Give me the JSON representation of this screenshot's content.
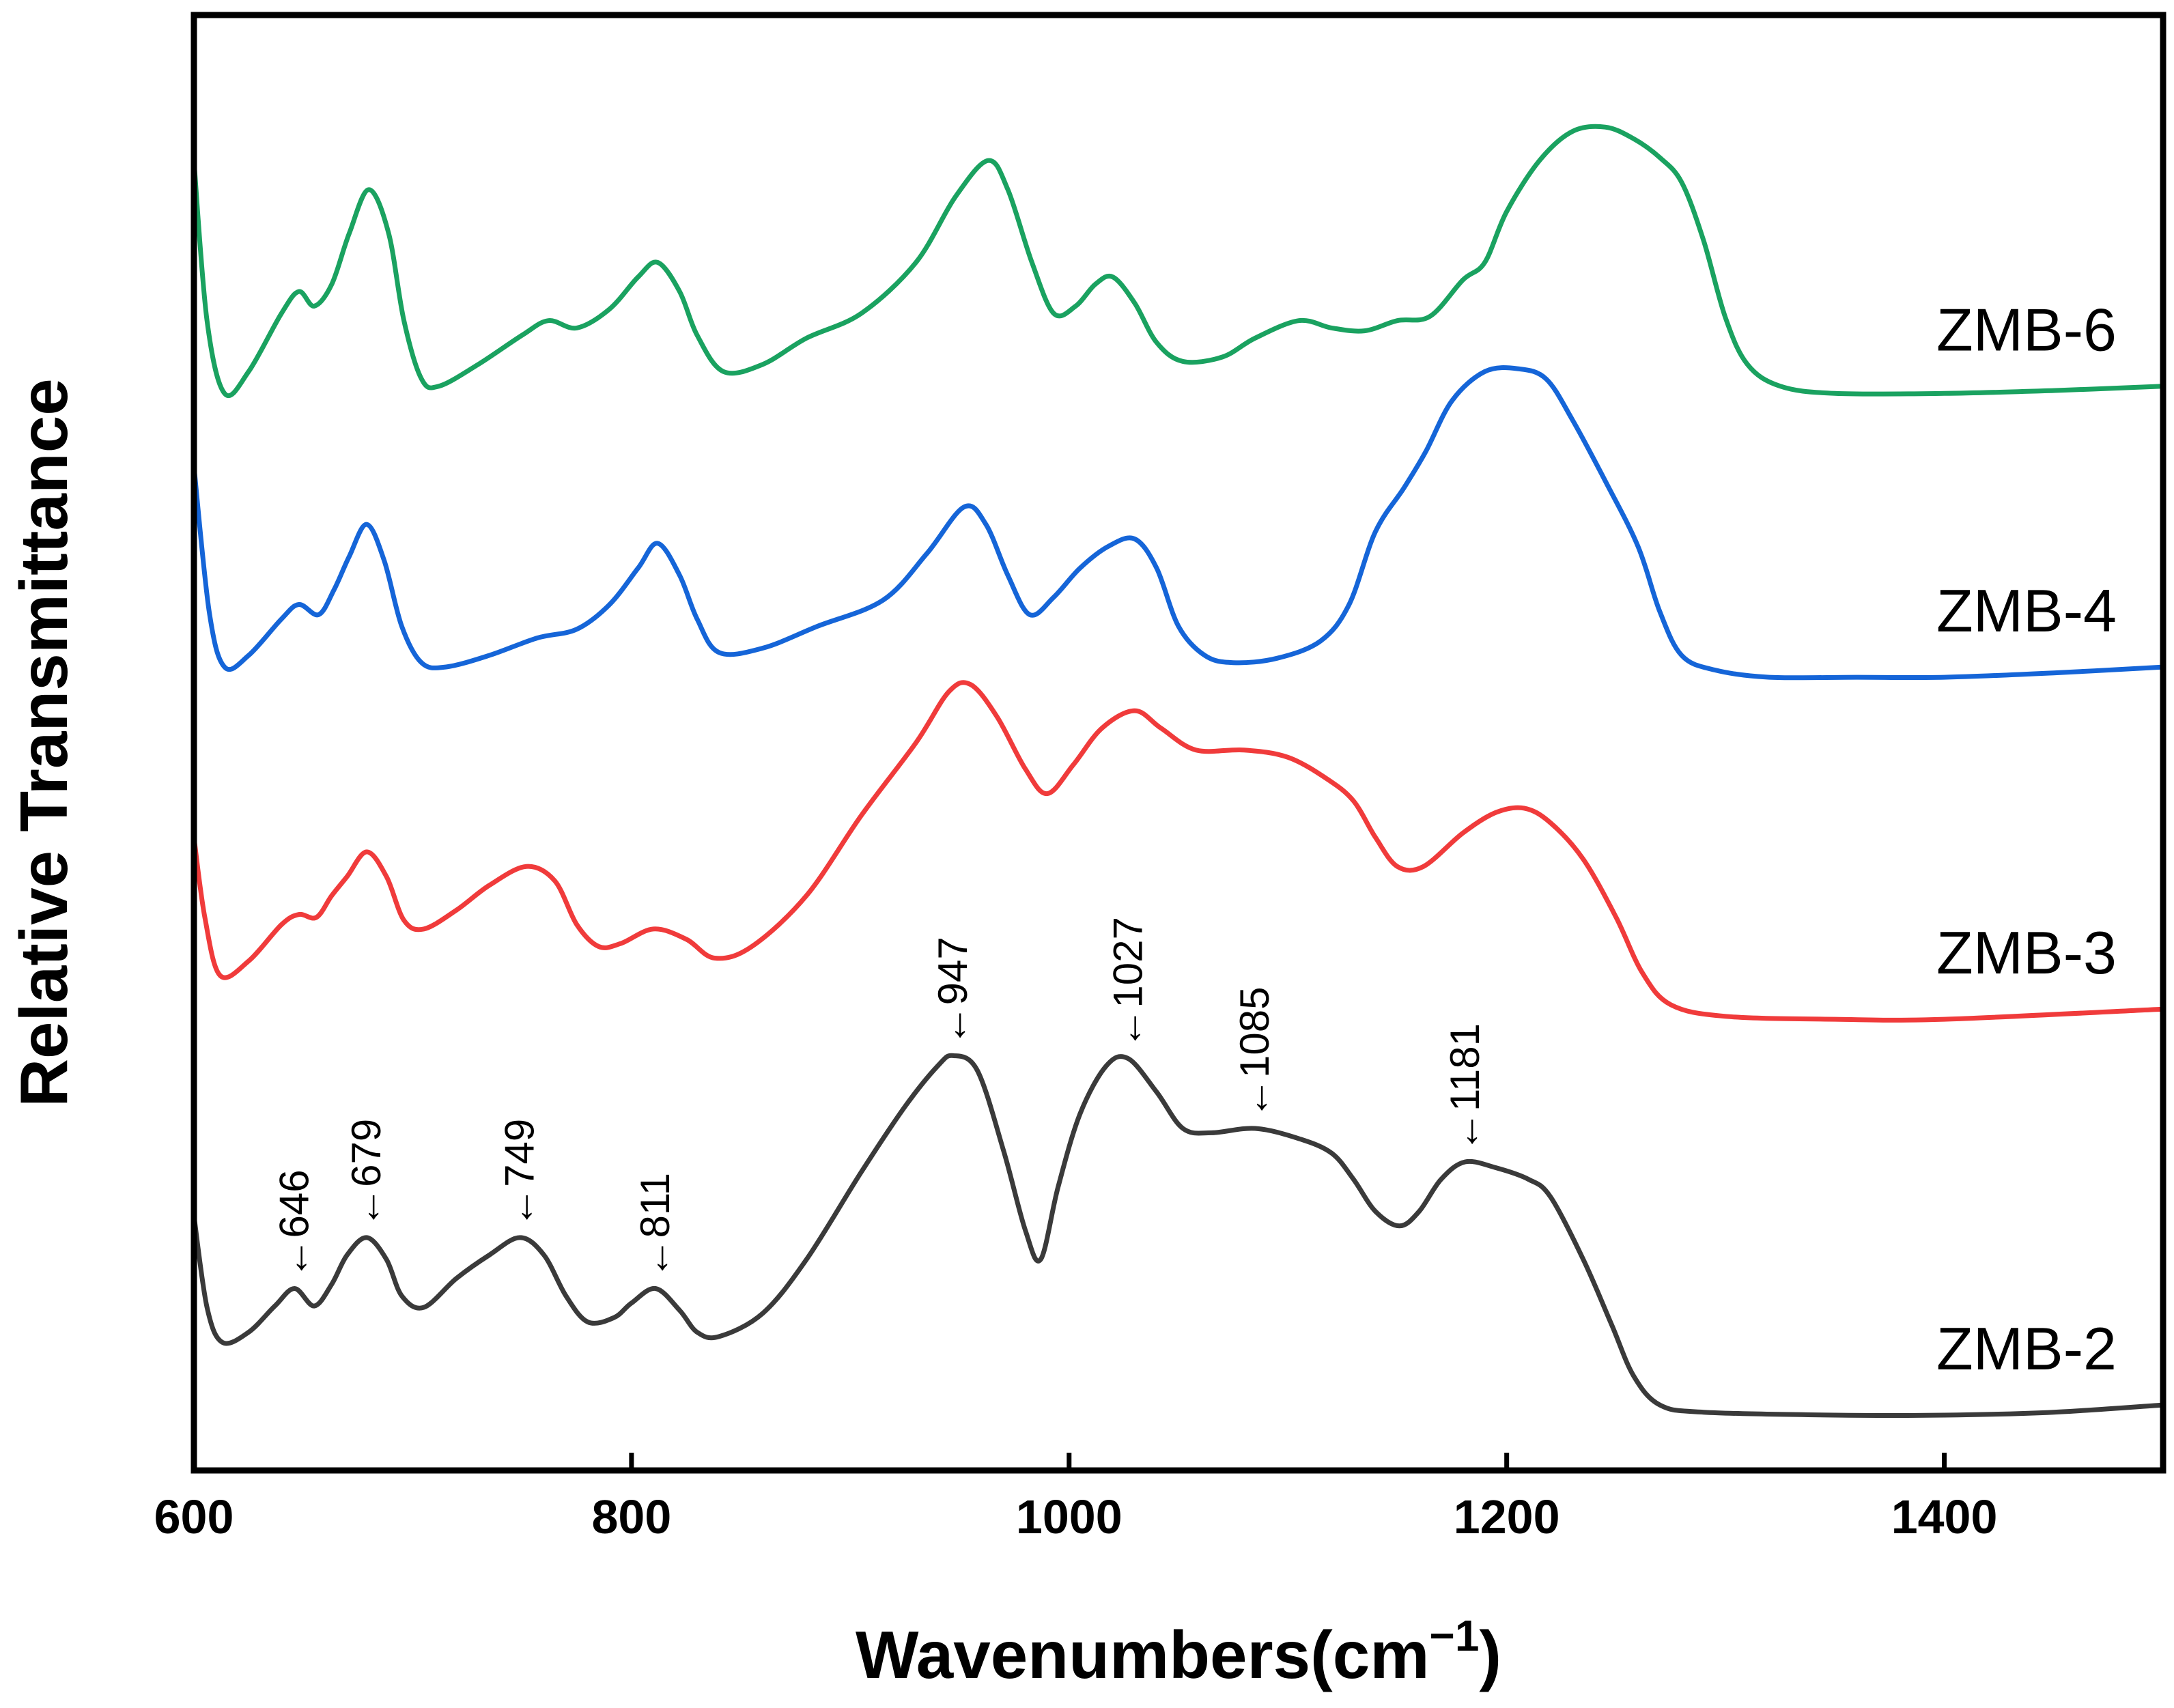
{
  "chart_data": {
    "type": "line",
    "title": "",
    "xlabel": "Wavenumbers(cm",
    "xlabel_sup": "−1",
    "xlabel_close": ")",
    "ylabel": "Relative Transmittance",
    "xlim": [
      600,
      1500
    ],
    "ylim": [
      0,
      10
    ],
    "xticks": [
      600,
      800,
      1000,
      1200,
      1400
    ],
    "yticks": [],
    "grid": false,
    "legend": "inline labels at right",
    "series": [
      {
        "name": "ZMB-6",
        "color": "#1aa260",
        "points": [
          [
            600,
            9.0
          ],
          [
            606,
            7.9
          ],
          [
            614,
            7.4
          ],
          [
            625,
            7.55
          ],
          [
            640,
            7.95
          ],
          [
            648,
            8.1
          ],
          [
            655,
            8.0
          ],
          [
            663,
            8.15
          ],
          [
            671,
            8.5
          ],
          [
            680,
            8.8
          ],
          [
            689,
            8.5
          ],
          [
            696,
            7.9
          ],
          [
            704,
            7.5
          ],
          [
            712,
            7.45
          ],
          [
            730,
            7.6
          ],
          [
            750,
            7.8
          ],
          [
            762,
            7.9
          ],
          [
            775,
            7.85
          ],
          [
            790,
            7.98
          ],
          [
            803,
            8.2
          ],
          [
            812,
            8.3
          ],
          [
            822,
            8.1
          ],
          [
            830,
            7.8
          ],
          [
            842,
            7.55
          ],
          [
            860,
            7.6
          ],
          [
            880,
            7.78
          ],
          [
            905,
            7.95
          ],
          [
            930,
            8.3
          ],
          [
            948,
            8.75
          ],
          [
            963,
            9.0
          ],
          [
            972,
            8.8
          ],
          [
            983,
            8.3
          ],
          [
            993,
            7.95
          ],
          [
            1003,
            8.0
          ],
          [
            1012,
            8.15
          ],
          [
            1020,
            8.2
          ],
          [
            1030,
            8.02
          ],
          [
            1040,
            7.75
          ],
          [
            1052,
            7.62
          ],
          [
            1070,
            7.65
          ],
          [
            1085,
            7.78
          ],
          [
            1105,
            7.9
          ],
          [
            1120,
            7.85
          ],
          [
            1135,
            7.83
          ],
          [
            1150,
            7.9
          ],
          [
            1165,
            7.93
          ],
          [
            1180,
            8.18
          ],
          [
            1190,
            8.3
          ],
          [
            1200,
            8.65
          ],
          [
            1215,
            9.0
          ],
          [
            1230,
            9.2
          ],
          [
            1245,
            9.23
          ],
          [
            1258,
            9.15
          ],
          [
            1270,
            9.02
          ],
          [
            1280,
            8.85
          ],
          [
            1290,
            8.45
          ],
          [
            1300,
            7.92
          ],
          [
            1310,
            7.6
          ],
          [
            1325,
            7.45
          ],
          [
            1350,
            7.4
          ],
          [
            1400,
            7.4
          ],
          [
            1450,
            7.42
          ],
          [
            1500,
            7.45
          ]
        ]
      },
      {
        "name": "ZMB-4",
        "color": "#1565d8",
        "points": [
          [
            600,
            6.9
          ],
          [
            607,
            5.9
          ],
          [
            614,
            5.52
          ],
          [
            625,
            5.6
          ],
          [
            640,
            5.85
          ],
          [
            648,
            5.95
          ],
          [
            657,
            5.88
          ],
          [
            664,
            6.05
          ],
          [
            671,
            6.28
          ],
          [
            679,
            6.5
          ],
          [
            687,
            6.25
          ],
          [
            695,
            5.8
          ],
          [
            704,
            5.55
          ],
          [
            715,
            5.52
          ],
          [
            735,
            5.6
          ],
          [
            757,
            5.72
          ],
          [
            775,
            5.78
          ],
          [
            790,
            5.95
          ],
          [
            803,
            6.2
          ],
          [
            812,
            6.37
          ],
          [
            822,
            6.15
          ],
          [
            830,
            5.85
          ],
          [
            840,
            5.62
          ],
          [
            860,
            5.65
          ],
          [
            885,
            5.8
          ],
          [
            915,
            5.98
          ],
          [
            935,
            6.3
          ],
          [
            952,
            6.62
          ],
          [
            962,
            6.5
          ],
          [
            972,
            6.15
          ],
          [
            982,
            5.88
          ],
          [
            993,
            6.0
          ],
          [
            1005,
            6.2
          ],
          [
            1018,
            6.35
          ],
          [
            1030,
            6.4
          ],
          [
            1040,
            6.2
          ],
          [
            1050,
            5.8
          ],
          [
            1062,
            5.6
          ],
          [
            1075,
            5.55
          ],
          [
            1095,
            5.58
          ],
          [
            1115,
            5.7
          ],
          [
            1128,
            5.95
          ],
          [
            1140,
            6.45
          ],
          [
            1153,
            6.75
          ],
          [
            1163,
            7.0
          ],
          [
            1175,
            7.35
          ],
          [
            1190,
            7.55
          ],
          [
            1205,
            7.57
          ],
          [
            1218,
            7.5
          ],
          [
            1230,
            7.22
          ],
          [
            1245,
            6.8
          ],
          [
            1260,
            6.35
          ],
          [
            1270,
            5.9
          ],
          [
            1280,
            5.6
          ],
          [
            1295,
            5.5
          ],
          [
            1320,
            5.45
          ],
          [
            1360,
            5.45
          ],
          [
            1400,
            5.45
          ],
          [
            1450,
            5.48
          ],
          [
            1500,
            5.52
          ]
        ]
      },
      {
        "name": "ZMB-3",
        "color": "#f03b3b",
        "points": [
          [
            600,
            4.35
          ],
          [
            605,
            3.8
          ],
          [
            612,
            3.4
          ],
          [
            625,
            3.5
          ],
          [
            640,
            3.75
          ],
          [
            648,
            3.82
          ],
          [
            656,
            3.8
          ],
          [
            663,
            3.95
          ],
          [
            670,
            4.08
          ],
          [
            679,
            4.25
          ],
          [
            688,
            4.08
          ],
          [
            696,
            3.78
          ],
          [
            705,
            3.72
          ],
          [
            720,
            3.85
          ],
          [
            735,
            4.02
          ],
          [
            752,
            4.15
          ],
          [
            765,
            4.05
          ],
          [
            775,
            3.75
          ],
          [
            785,
            3.6
          ],
          [
            795,
            3.62
          ],
          [
            810,
            3.72
          ],
          [
            825,
            3.65
          ],
          [
            838,
            3.52
          ],
          [
            855,
            3.6
          ],
          [
            880,
            3.95
          ],
          [
            905,
            4.5
          ],
          [
            930,
            5.0
          ],
          [
            945,
            5.35
          ],
          [
            955,
            5.4
          ],
          [
            967,
            5.18
          ],
          [
            980,
            4.82
          ],
          [
            990,
            4.65
          ],
          [
            1002,
            4.85
          ],
          [
            1015,
            5.1
          ],
          [
            1030,
            5.22
          ],
          [
            1042,
            5.1
          ],
          [
            1058,
            4.95
          ],
          [
            1080,
            4.95
          ],
          [
            1100,
            4.9
          ],
          [
            1118,
            4.75
          ],
          [
            1130,
            4.6
          ],
          [
            1140,
            4.35
          ],
          [
            1150,
            4.15
          ],
          [
            1162,
            4.15
          ],
          [
            1180,
            4.38
          ],
          [
            1195,
            4.52
          ],
          [
            1208,
            4.55
          ],
          [
            1220,
            4.45
          ],
          [
            1235,
            4.2
          ],
          [
            1250,
            3.8
          ],
          [
            1262,
            3.42
          ],
          [
            1275,
            3.2
          ],
          [
            1300,
            3.12
          ],
          [
            1350,
            3.1
          ],
          [
            1400,
            3.1
          ],
          [
            1500,
            3.17
          ]
        ]
      },
      {
        "name": "ZMB-2",
        "color": "#3a3a3a",
        "points": [
          [
            600,
            1.75
          ],
          [
            606,
            1.12
          ],
          [
            613,
            0.88
          ],
          [
            625,
            0.95
          ],
          [
            637,
            1.13
          ],
          [
            646,
            1.25
          ],
          [
            655,
            1.13
          ],
          [
            663,
            1.28
          ],
          [
            670,
            1.48
          ],
          [
            679,
            1.6
          ],
          [
            688,
            1.45
          ],
          [
            695,
            1.2
          ],
          [
            705,
            1.12
          ],
          [
            720,
            1.32
          ],
          [
            735,
            1.48
          ],
          [
            749,
            1.6
          ],
          [
            760,
            1.48
          ],
          [
            770,
            1.2
          ],
          [
            780,
            1.02
          ],
          [
            792,
            1.05
          ],
          [
            800,
            1.15
          ],
          [
            811,
            1.25
          ],
          [
            822,
            1.1
          ],
          [
            830,
            0.95
          ],
          [
            840,
            0.92
          ],
          [
            860,
            1.08
          ],
          [
            880,
            1.45
          ],
          [
            905,
            2.05
          ],
          [
            925,
            2.5
          ],
          [
            940,
            2.78
          ],
          [
            947,
            2.85
          ],
          [
            958,
            2.75
          ],
          [
            970,
            2.2
          ],
          [
            980,
            1.65
          ],
          [
            987,
            1.45
          ],
          [
            995,
            1.95
          ],
          [
            1005,
            2.45
          ],
          [
            1017,
            2.78
          ],
          [
            1027,
            2.83
          ],
          [
            1040,
            2.6
          ],
          [
            1052,
            2.35
          ],
          [
            1065,
            2.32
          ],
          [
            1085,
            2.35
          ],
          [
            1105,
            2.28
          ],
          [
            1120,
            2.18
          ],
          [
            1130,
            2.0
          ],
          [
            1140,
            1.78
          ],
          [
            1151,
            1.68
          ],
          [
            1160,
            1.78
          ],
          [
            1170,
            2.0
          ],
          [
            1181,
            2.12
          ],
          [
            1195,
            2.08
          ],
          [
            1210,
            2.0
          ],
          [
            1220,
            1.88
          ],
          [
            1235,
            1.45
          ],
          [
            1248,
            1.0
          ],
          [
            1258,
            0.65
          ],
          [
            1270,
            0.45
          ],
          [
            1290,
            0.4
          ],
          [
            1350,
            0.38
          ],
          [
            1400,
            0.38
          ],
          [
            1450,
            0.4
          ],
          [
            1500,
            0.45
          ]
        ]
      }
    ],
    "annotations": [
      {
        "label": "646",
        "x": 646
      },
      {
        "label": "679",
        "x": 679
      },
      {
        "label": "749",
        "x": 749
      },
      {
        "label": "811",
        "x": 811
      },
      {
        "label": "947",
        "x": 947
      },
      {
        "label": "1027",
        "x": 1027
      },
      {
        "label": "1085",
        "x": 1085
      },
      {
        "label": "1181",
        "x": 1181
      }
    ],
    "annotation_series": "ZMB-2",
    "annotation_arrow": "←"
  }
}
